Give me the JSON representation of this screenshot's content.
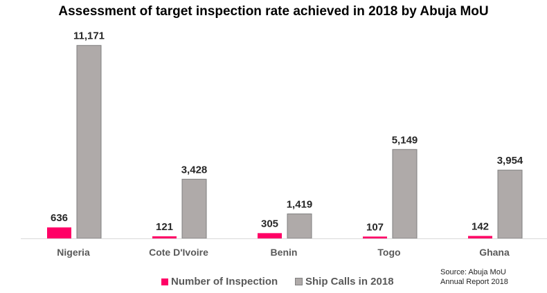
{
  "chart_data": {
    "type": "bar",
    "title": "Assessment of target inspection rate achieved in 2018 by Abuja MoU",
    "categories": [
      "Nigeria",
      "Cote D'Ivoire",
      "Benin",
      "Togo",
      "Ghana"
    ],
    "series": [
      {
        "name": "Number of Inspection",
        "color": "#ff0066",
        "values": [
          636,
          121,
          305,
          107,
          142
        ],
        "labels": [
          "636",
          "121",
          "305",
          "107",
          "142"
        ]
      },
      {
        "name": "Ship Calls in 2018",
        "color": "#afaaa9",
        "values": [
          11171,
          3428,
          1419,
          5149,
          3954
        ],
        "labels": [
          "11,171",
          "3,428",
          "1,419",
          "5,149",
          "3,954"
        ]
      }
    ],
    "xlabel": "",
    "ylabel": "",
    "ylim": [
      0,
      12000
    ],
    "grid": false,
    "legend_position": "bottom",
    "source": [
      "Source: Abuja MoU",
      "Annual Report 2018"
    ]
  }
}
